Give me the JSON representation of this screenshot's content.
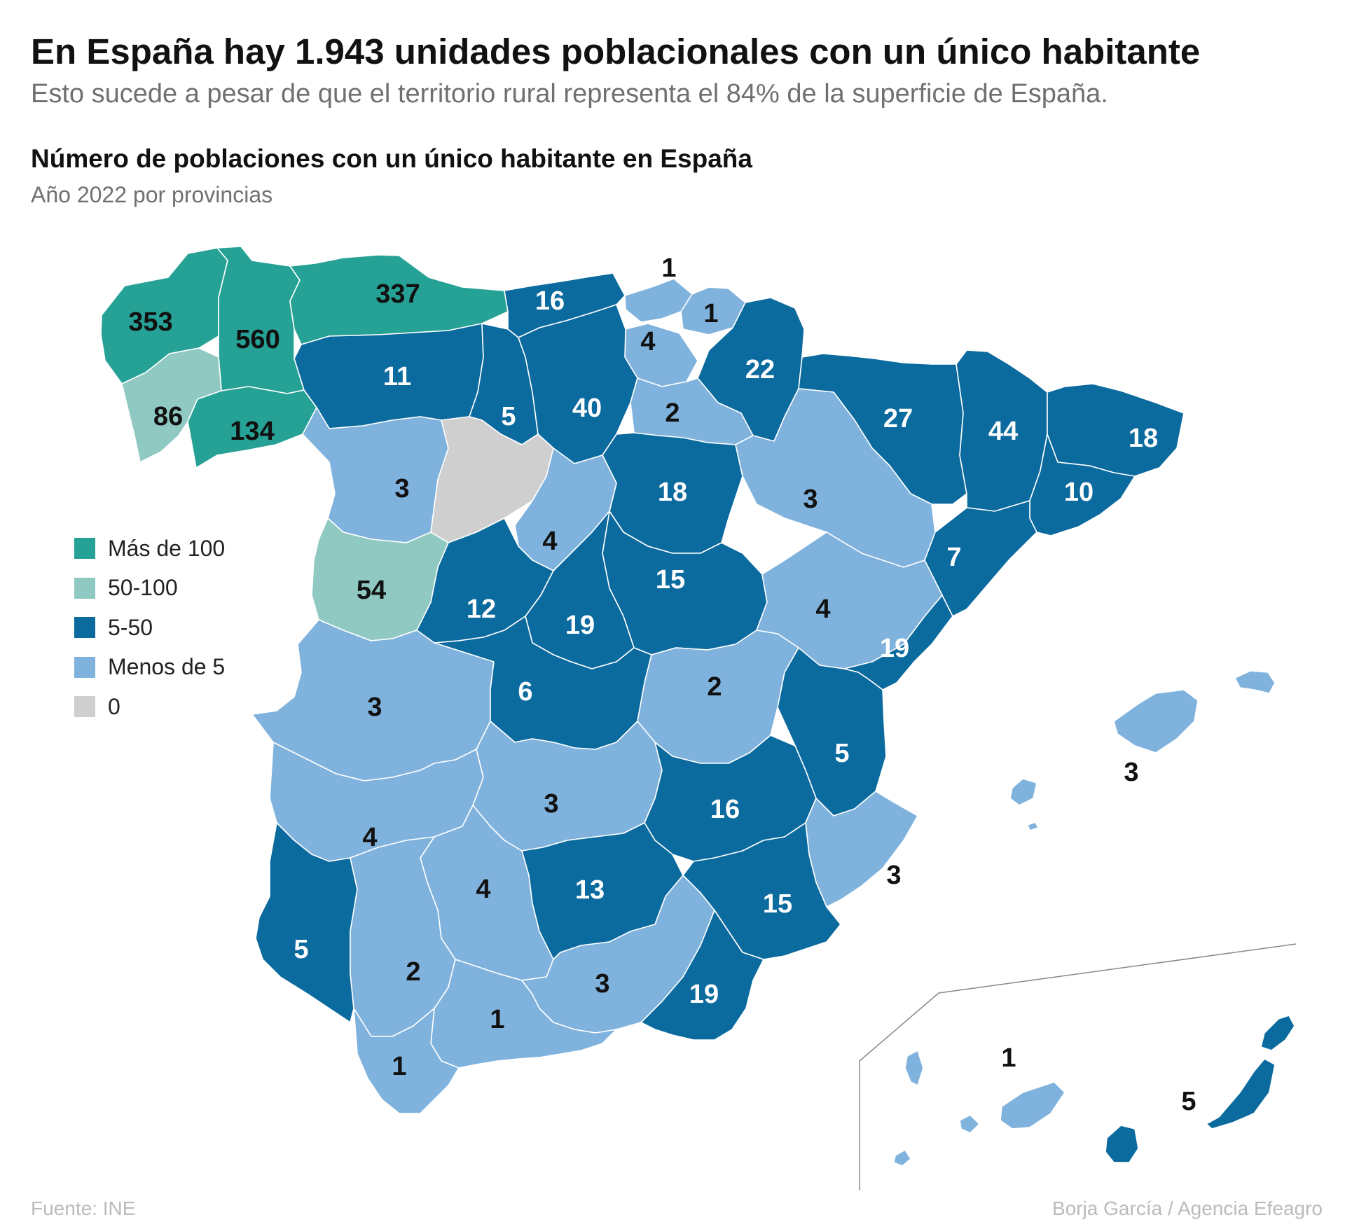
{
  "headline": "En España hay 1.943 unidades poblacionales con un único habitante",
  "subheadline": "Esto sucede a pesar de que el territorio rural representa el 84% de la superficie de España.",
  "chart": {
    "title": "Número de poblaciones con un único habitante en España",
    "subtitle": "Año 2022 por provincias"
  },
  "legend": [
    {
      "label": "Más de 100",
      "color": "#26a195"
    },
    {
      "label": "50-100",
      "color": "#8fc9c2"
    },
    {
      "label": "5-50",
      "color": "#0b6a9e"
    },
    {
      "label": "Menos de 5",
      "color": "#7fb2dc"
    },
    {
      "label": "0",
      "color": "#cfcfcf"
    }
  ],
  "chart_data": {
    "type": "choropleth",
    "regions": [
      {
        "name": "A Coruña",
        "value": "353",
        "category": "Más de 100"
      },
      {
        "name": "Lugo",
        "value": "560",
        "category": "Más de 100"
      },
      {
        "name": "Asturias",
        "value": "337",
        "category": "Más de 100"
      },
      {
        "name": "Pontevedra",
        "value": "86",
        "category": "50-100"
      },
      {
        "name": "Ourense",
        "value": "134",
        "category": "Más de 100"
      },
      {
        "name": "Cantabria",
        "value": "16",
        "category": "5-50"
      },
      {
        "name": "Bizkaia",
        "value": "1",
        "category": "Menos de 5"
      },
      {
        "name": "Gipuzkoa",
        "value": "1",
        "category": "Menos de 5"
      },
      {
        "name": "Álava",
        "value": "4",
        "category": "Menos de 5"
      },
      {
        "name": "Navarra",
        "value": "22",
        "category": "5-50"
      },
      {
        "name": "León",
        "value": "11",
        "category": "5-50"
      },
      {
        "name": "Palencia",
        "value": "5",
        "category": "5-50"
      },
      {
        "name": "Burgos",
        "value": "40",
        "category": "5-50"
      },
      {
        "name": "La Rioja",
        "value": "2",
        "category": "Menos de 5"
      },
      {
        "name": "Huesca",
        "value": "27",
        "category": "5-50"
      },
      {
        "name": "Lleida",
        "value": "44",
        "category": "5-50"
      },
      {
        "name": "Girona",
        "value": "18",
        "category": "5-50"
      },
      {
        "name": "Barcelona",
        "value": "10",
        "category": "5-50"
      },
      {
        "name": "Zamora",
        "value": "3",
        "category": "Menos de 5"
      },
      {
        "name": "Valladolid",
        "value": "0",
        "category": "0"
      },
      {
        "name": "Soria",
        "value": "18",
        "category": "5-50"
      },
      {
        "name": "Zaragoza",
        "value": "3",
        "category": "Menos de 5"
      },
      {
        "name": "Segovia",
        "value": "4",
        "category": "Menos de 5"
      },
      {
        "name": "Tarragona",
        "value": "7",
        "category": "5-50"
      },
      {
        "name": "Salamanca",
        "value": "54",
        "category": "50-100"
      },
      {
        "name": "Ávila",
        "value": "12",
        "category": "5-50"
      },
      {
        "name": "Guadalajara",
        "value": "15",
        "category": "5-50"
      },
      {
        "name": "Teruel",
        "value": "4",
        "category": "Menos de 5"
      },
      {
        "name": "Madrid",
        "value": "19",
        "category": "5-50"
      },
      {
        "name": "Castellón",
        "value": "19",
        "category": "5-50"
      },
      {
        "name": "Cáceres",
        "value": "3",
        "category": "Menos de 5"
      },
      {
        "name": "Toledo",
        "value": "6",
        "category": "5-50"
      },
      {
        "name": "Cuenca",
        "value": "2",
        "category": "Menos de 5"
      },
      {
        "name": "Valencia",
        "value": "5",
        "category": "5-50"
      },
      {
        "name": "Badajoz",
        "value": "4",
        "category": "Menos de 5"
      },
      {
        "name": "Ciudad Real",
        "value": "3",
        "category": "Menos de 5"
      },
      {
        "name": "Albacete",
        "value": "16",
        "category": "5-50"
      },
      {
        "name": "Alicante",
        "value": "3",
        "category": "Menos de 5"
      },
      {
        "name": "Córdoba",
        "value": "4",
        "category": "Menos de 5"
      },
      {
        "name": "Jaén",
        "value": "13",
        "category": "5-50"
      },
      {
        "name": "Murcia",
        "value": "15",
        "category": "5-50"
      },
      {
        "name": "Huelva",
        "value": "5",
        "category": "5-50"
      },
      {
        "name": "Sevilla",
        "value": "2",
        "category": "Menos de 5"
      },
      {
        "name": "Granada",
        "value": "3",
        "category": "Menos de 5"
      },
      {
        "name": "Almería",
        "value": "19",
        "category": "5-50"
      },
      {
        "name": "Málaga",
        "value": "1",
        "category": "Menos de 5"
      },
      {
        "name": "Cádiz",
        "value": "1",
        "category": "Menos de 5"
      },
      {
        "name": "Illes Balears",
        "value": "3",
        "category": "Menos de 5"
      },
      {
        "name": "Santa Cruz de Tenerife",
        "value": "1",
        "category": "Menos de 5"
      },
      {
        "name": "Las Palmas",
        "value": "5",
        "category": "5-50"
      }
    ]
  },
  "footer": {
    "source": "Fuente: INE",
    "credit": "Borja García / Agencia Efeagro"
  }
}
